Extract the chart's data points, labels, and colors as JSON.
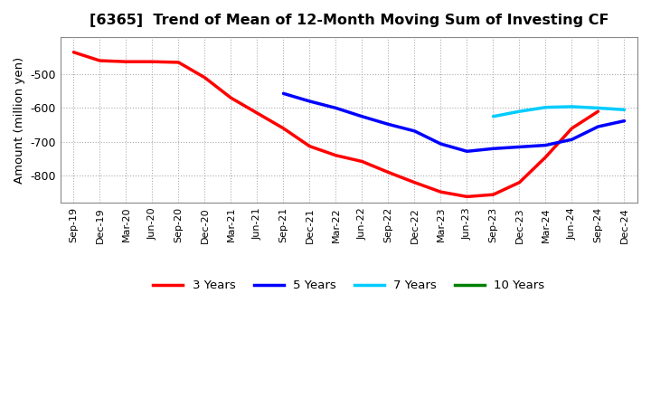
{
  "title": "[6365]  Trend of Mean of 12-Month Moving Sum of Investing CF",
  "ylabel": "Amount (million yen)",
  "ylim": [
    -880,
    -390
  ],
  "yticks": [
    -800,
    -700,
    -600,
    -500
  ],
  "background_color": "#ffffff",
  "plot_bg_color": "#ffffff",
  "grid_color": "#aaaaaa",
  "x_labels": [
    "Sep-19",
    "Dec-19",
    "Mar-20",
    "Jun-20",
    "Sep-20",
    "Dec-20",
    "Mar-21",
    "Jun-21",
    "Sep-21",
    "Dec-21",
    "Mar-22",
    "Jun-22",
    "Sep-22",
    "Dec-22",
    "Mar-23",
    "Jun-23",
    "Sep-23",
    "Dec-23",
    "Mar-24",
    "Jun-24",
    "Sep-24",
    "Dec-24"
  ],
  "series": {
    "3 Years": {
      "color": "#ff0000",
      "data_x": [
        0,
        1,
        2,
        3,
        4,
        5,
        6,
        7,
        8,
        9,
        10,
        11,
        12,
        13,
        14,
        15,
        16,
        17,
        18,
        19,
        20
      ],
      "data_y": [
        -435,
        -460,
        -463,
        -463,
        -465,
        -510,
        -570,
        -615,
        -660,
        -713,
        -740,
        -758,
        -790,
        -820,
        -848,
        -862,
        -856,
        -820,
        -745,
        -660,
        -610
      ]
    },
    "5 Years": {
      "color": "#0000ff",
      "data_x": [
        8,
        9,
        10,
        11,
        12,
        13,
        14,
        15,
        16,
        17,
        18,
        19,
        20,
        21
      ],
      "data_y": [
        -557,
        -580,
        -600,
        -625,
        -648,
        -668,
        -706,
        -728,
        -720,
        -715,
        -710,
        -693,
        -655,
        -638
      ]
    },
    "7 Years": {
      "color": "#00ccff",
      "data_x": [
        16,
        17,
        18,
        19,
        20,
        21
      ],
      "data_y": [
        -625,
        -610,
        -598,
        -596,
        -600,
        -605
      ]
    },
    "10 Years": {
      "color": "#008000",
      "data_x": [],
      "data_y": []
    }
  },
  "legend_entries": [
    "3 Years",
    "5 Years",
    "7 Years",
    "10 Years"
  ],
  "legend_colors": [
    "#ff0000",
    "#0000ff",
    "#00ccff",
    "#008000"
  ]
}
